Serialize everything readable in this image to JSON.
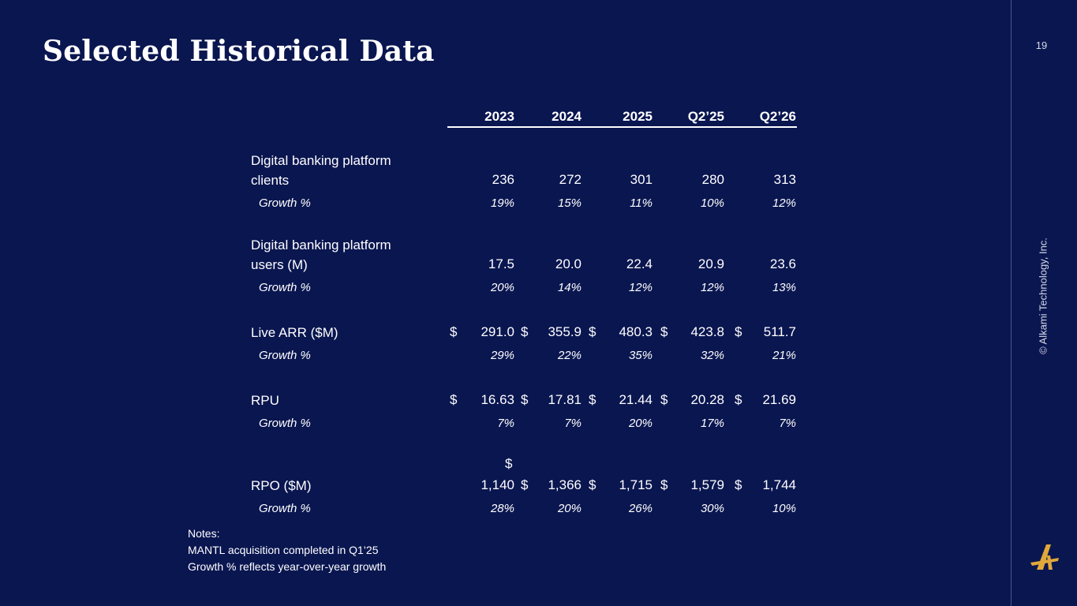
{
  "slide": {
    "title": "Selected Historical Data",
    "page_number": "19",
    "copyright": "© Alkami Technology, Inc."
  },
  "table": {
    "columns": [
      "2023",
      "2024",
      "2025",
      "Q2’25",
      "Q2’26"
    ],
    "growth_label": "Growth %",
    "rows": [
      {
        "label_line1": "Digital banking platform",
        "label_line2": "clients",
        "values": [
          "236",
          "272",
          "301",
          "280",
          "313"
        ],
        "growth": [
          "19%",
          "15%",
          "11%",
          "10%",
          "12%"
        ]
      },
      {
        "label_line1": "Digital banking platform",
        "label_line2": "users (M)",
        "values": [
          "17.5",
          "20.0",
          "22.4",
          "20.9",
          "23.6"
        ],
        "growth": [
          "20%",
          "14%",
          "12%",
          "12%",
          "13%"
        ]
      },
      {
        "label_line1": "Live ARR ($M)",
        "currency": "$",
        "values": [
          "291.0",
          "355.9",
          "480.3",
          "423.8",
          "511.7"
        ],
        "growth": [
          "29%",
          "22%",
          "35%",
          "32%",
          "21%"
        ]
      },
      {
        "label_line1": "RPU",
        "currency": "$",
        "values": [
          "16.63",
          "17.81",
          "21.44",
          "20.28",
          "21.69"
        ],
        "growth": [
          "7%",
          "7%",
          "20%",
          "17%",
          "7%"
        ]
      },
      {
        "label_line1": "RPO ($M)",
        "currency": "$",
        "values": [
          "1,140",
          "1,366",
          "1,715",
          "1,579",
          "1,744"
        ],
        "growth": [
          "28%",
          "20%",
          "26%",
          "30%",
          "10%"
        ]
      }
    ]
  },
  "notes": {
    "heading": "Notes:",
    "lines": [
      "MANTL acquisition completed in Q1’25",
      "Growth % reflects year-over-year growth"
    ]
  },
  "colors": {
    "background": "#0a1650",
    "text": "#ffffff",
    "logo_accent": "#e0a83a"
  },
  "icons": {
    "logo": "alkami-a-logo-icon"
  }
}
